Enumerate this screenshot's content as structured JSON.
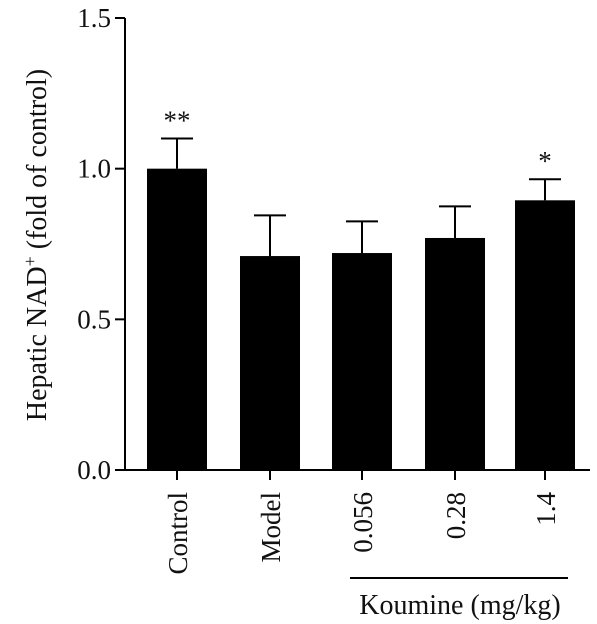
{
  "chart_data": {
    "type": "bar",
    "categories": [
      "Control",
      "Model",
      "0.056",
      "0.28",
      "1.4"
    ],
    "values": [
      1.0,
      0.71,
      0.72,
      0.77,
      0.895
    ],
    "errors": [
      0.1,
      0.135,
      0.105,
      0.105,
      0.07
    ],
    "significance": [
      "**",
      "",
      "",
      "",
      "*"
    ],
    "ylabel_main": "Hepatic NAD",
    "ylabel_sup": "+",
    "ylabel_tail": " (fold of control)",
    "ylim": [
      0,
      1.5
    ],
    "yticks": [
      "0.0",
      "0.5",
      "1.0",
      "1.5"
    ],
    "group_label": "Koumine (mg/kg)",
    "bar_color": "#000000",
    "grid": false
  }
}
